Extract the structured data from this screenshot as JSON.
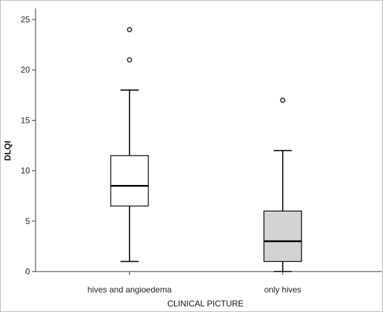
{
  "chart_data": {
    "type": "box",
    "xlabel": "CLINICAL PICTURE",
    "ylabel": "DLQI",
    "ylim": [
      0,
      26
    ],
    "yticks": [
      0,
      5,
      10,
      15,
      20,
      25
    ],
    "categories": [
      "hives and angioedema",
      "only hives"
    ],
    "boxes": [
      {
        "category": "hives and angioedema",
        "min": 1,
        "q1": 6.5,
        "median": 8.5,
        "q3": 11.5,
        "max": 18,
        "outliers": [
          21,
          24
        ],
        "fill": "#ffffff"
      },
      {
        "category": "only hives",
        "min": 0,
        "q1": 1,
        "median": 3,
        "q3": 6,
        "max": 12,
        "outliers": [
          17
        ],
        "fill": "#d3d3d3"
      }
    ],
    "grid": false
  }
}
